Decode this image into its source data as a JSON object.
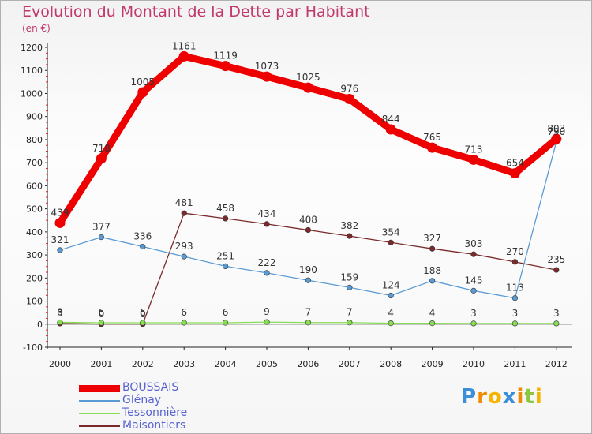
{
  "chart_data": {
    "type": "line",
    "title": "Evolution du Montant de la Dette par Habitant",
    "subtitle": "(en €)",
    "x": [
      "2000",
      "2001",
      "2002",
      "2003",
      "2004",
      "2005",
      "2006",
      "2007",
      "2008",
      "2009",
      "2010",
      "2011",
      "2012"
    ],
    "ylim": [
      -100,
      1200
    ],
    "yticks": [
      -100,
      0,
      100,
      200,
      300,
      400,
      500,
      600,
      700,
      800,
      900,
      1000,
      1100,
      1200
    ],
    "grid": false,
    "legend_position": "bottom-left",
    "series": [
      {
        "name": "BOUSSAIS",
        "color": "#ee0000",
        "values": [
          439,
          718,
          1005,
          1161,
          1119,
          1073,
          1025,
          976,
          844,
          765,
          713,
          654,
          803
        ],
        "emphasis": true
      },
      {
        "name": "Glénay",
        "color": "#5a9bd4",
        "values": [
          321,
          377,
          336,
          293,
          251,
          222,
          190,
          159,
          124,
          188,
          145,
          113,
          790
        ]
      },
      {
        "name": "Tessonnière",
        "color": "#88dd55",
        "values": [
          8,
          6,
          6,
          6,
          6,
          9,
          7,
          7,
          4,
          4,
          3,
          3,
          3
        ]
      },
      {
        "name": "Maisontiers",
        "color": "#7a2a2a",
        "values": [
          3,
          0,
          0,
          481,
          458,
          434,
          408,
          382,
          354,
          327,
          303,
          270,
          235
        ]
      }
    ]
  },
  "logo": {
    "letters": [
      "P",
      "r",
      "o",
      "x",
      "i",
      "t",
      "i"
    ],
    "colors": [
      "#3a8fd8",
      "#f08a00",
      "#f5b400",
      "#3a8fd8",
      "#f08a00",
      "#8dc63f",
      "#f5b400"
    ]
  }
}
